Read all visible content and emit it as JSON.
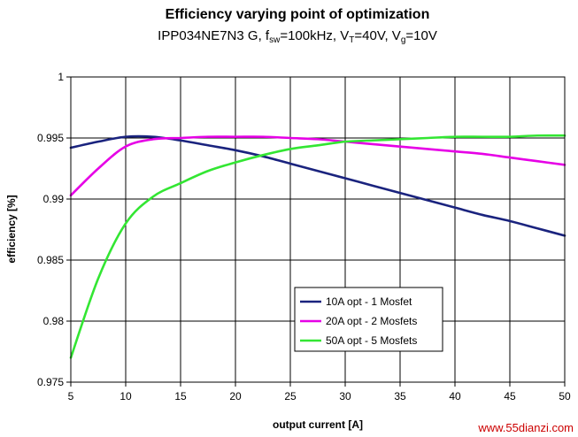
{
  "chart_data": {
    "type": "line",
    "title": "Efficiency varying point of optimization",
    "subtitle": {
      "prefix": "IPP034NE7N3 G, f",
      "sub1": "sw",
      "mid1": "=100kHz, V",
      "sub2": "T",
      "mid2": "=40V, V",
      "sub3": "g",
      "suffix": "=10V"
    },
    "xlabel": "output current [A]",
    "ylabel": "efficiency [%]",
    "xlim": [
      5,
      50
    ],
    "ylim": [
      0.975,
      1
    ],
    "xticks": [
      "5",
      "10",
      "15",
      "20",
      "25",
      "30",
      "35",
      "40",
      "45",
      "50"
    ],
    "yticks": [
      "0.975",
      "0.98",
      "0.985",
      "0.99",
      "0.995",
      "1"
    ],
    "grid": true,
    "legend_position": "center-bottom",
    "x": [
      5,
      7.5,
      10,
      12.5,
      15,
      17.5,
      20,
      22.5,
      25,
      27.5,
      30,
      32.5,
      35,
      37.5,
      40,
      42.5,
      45,
      47.5,
      50
    ],
    "series": [
      {
        "name": "10A opt - 1 Mosfet",
        "color": "#1a237e",
        "values": [
          0.9942,
          0.9947,
          0.9951,
          0.9951,
          0.9948,
          0.9944,
          0.994,
          0.9935,
          0.9929,
          0.9923,
          0.9917,
          0.9911,
          0.9905,
          0.9899,
          0.9893,
          0.9887,
          0.9882,
          0.9876,
          0.987
        ]
      },
      {
        "name": "20A opt - 2 Mosfets",
        "color": "#e600e6",
        "values": [
          0.9903,
          0.9925,
          0.9943,
          0.9949,
          0.995,
          0.9951,
          0.9951,
          0.9951,
          0.995,
          0.9949,
          0.9947,
          0.9945,
          0.9943,
          0.9941,
          0.9939,
          0.9937,
          0.9934,
          0.9931,
          0.9928
        ]
      },
      {
        "name": "50A opt - 5 Mosfets",
        "color": "#33e633",
        "values": [
          0.977,
          0.9835,
          0.988,
          0.9902,
          0.9913,
          0.9923,
          0.993,
          0.9936,
          0.9941,
          0.9944,
          0.9947,
          0.9948,
          0.9949,
          0.995,
          0.9951,
          0.9951,
          0.9951,
          0.9952,
          0.9952
        ]
      }
    ]
  },
  "watermark": "www.55dianzi.com",
  "colors": {
    "plot_border": "#000000",
    "grid": "#000000"
  }
}
